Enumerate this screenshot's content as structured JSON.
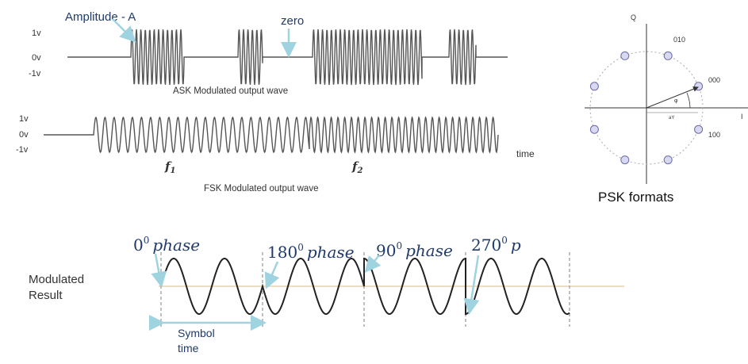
{
  "ask": {
    "label_1v": "1v",
    "label_0v": "0v",
    "label_m1v": "-1v",
    "annot_amplitude": "Amplitude  - A",
    "annot_zero": "zero",
    "caption": "ASK Modulated output wave"
  },
  "fsk": {
    "label_1v": "1v",
    "label_0v": "0v",
    "label_m1v": "-1v",
    "f1_base": "f",
    "f1_sub": "1",
    "f2_base": "f",
    "f2_sub": "2",
    "time_label": "time",
    "caption": "FSK Modulated output wave"
  },
  "psk": {
    "axis_q": "Q",
    "axis_i": "I",
    "point_010": "010",
    "point_000": "000",
    "point_100": "100",
    "phi": "φ",
    "a_label": "aY",
    "caption": "PSK formats"
  },
  "psk_wave": {
    "result_line1": "Modulated",
    "result_line2": "Result",
    "phase_0_num": "0",
    "phase_180_num": "180",
    "phase_90_num": "90",
    "phase_270_num": "270",
    "deg_sup": "0",
    "phase_word": "phase",
    "phase_trunc": "p",
    "symbol_line1": "Symbol",
    "symbol_line2": "time"
  },
  "colors": {
    "wave": "#555555",
    "psk_wave": "#222222",
    "annot_blue": "#1f3a6b",
    "arrow_cyan": "#9fd3e0",
    "point_fill": "#d8d8f0",
    "point_stroke": "#6a6aa8",
    "baseline": "#d9b98a",
    "divider": "#aaaaaa"
  }
}
